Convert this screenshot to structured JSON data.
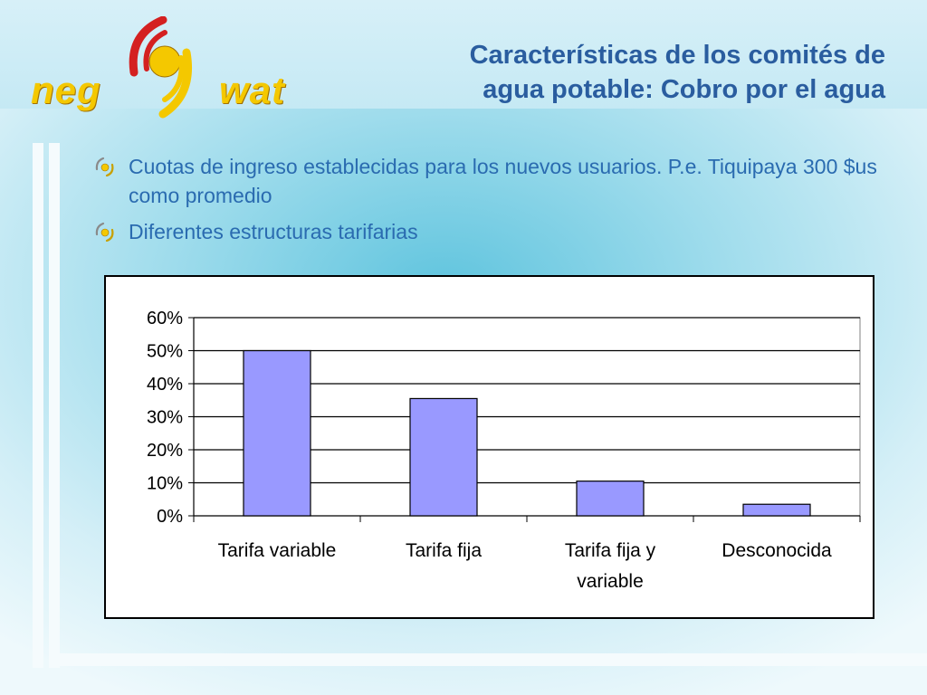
{
  "header": {
    "title_line1": "Características de los comités de",
    "title_line2": "agua potable: Cobro por el agua",
    "logo_left": "neg",
    "logo_right": "wat"
  },
  "bullets": [
    "Cuotas de ingreso establecidas para los nuevos usuarios. P.e. Tiquipaya 300 $us como promedio",
    "Diferentes estructuras tarifarias"
  ],
  "colors": {
    "title": "#2a5d9f",
    "bullet_text": "#2a6bb0",
    "bar_fill": "#9999ff",
    "logo_yellow": "#f4c800",
    "logo_red": "#d42020"
  },
  "chart_data": {
    "type": "bar",
    "categories": [
      "Tarifa variable",
      "Tarifa fija",
      "Tarifa fija y variable",
      "Desconocida"
    ],
    "category_lines": [
      [
        "Tarifa variable"
      ],
      [
        "Tarifa fija"
      ],
      [
        "Tarifa fija y",
        "variable"
      ],
      [
        "Desconocida"
      ]
    ],
    "values": [
      50,
      35.5,
      10.5,
      3.5
    ],
    "ylim": [
      0,
      60
    ],
    "yticks": [
      "0%",
      "10%",
      "20%",
      "30%",
      "40%",
      "50%",
      "60%"
    ],
    "ytick_values": [
      0,
      10,
      20,
      30,
      40,
      50,
      60
    ],
    "grid": true,
    "legend": "none"
  }
}
